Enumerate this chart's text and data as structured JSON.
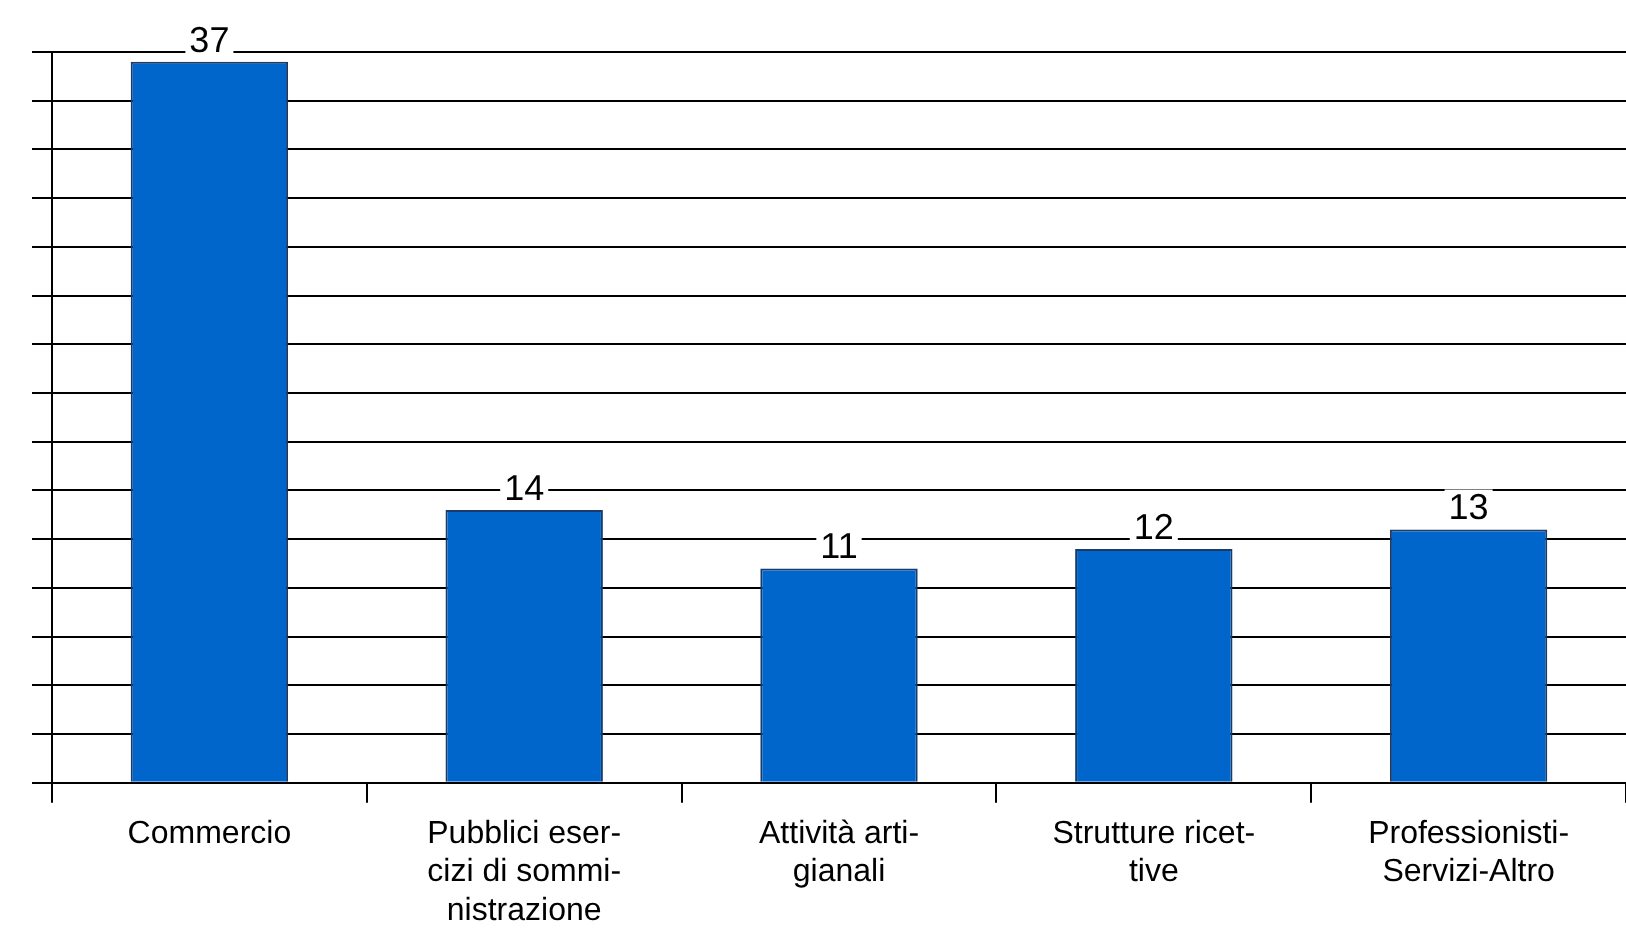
{
  "chart_data": {
    "type": "bar",
    "categories": [
      "Commercio",
      "Pubblici eser-\ncizi di sommi-\nnistrazione",
      "Attività arti-\ngianali",
      "Strutture ricet-\ntive",
      "Professionisti-\nServizi-Altro"
    ],
    "values": [
      37,
      14,
      11,
      12,
      13
    ],
    "color": "#0066cc",
    "ylim": [
      0,
      37.5
    ],
    "yticks": [
      {
        "value": 0,
        "label": null
      },
      {
        "value": 2.5,
        "label": null
      },
      {
        "value": 5,
        "label": null
      },
      {
        "value": 7.5,
        "label": null
      },
      {
        "value": 10,
        "label": null
      },
      {
        "value": 12.5,
        "label": null
      },
      {
        "value": 15,
        "label": null
      },
      {
        "value": 17.5,
        "label": null
      },
      {
        "value": 20,
        "label": null
      },
      {
        "value": 22.5,
        "label": null
      },
      {
        "value": 25,
        "label": null
      },
      {
        "value": 27.5,
        "label": null
      },
      {
        "value": 30,
        "label": null
      },
      {
        "value": 32.5,
        "label": null
      },
      {
        "value": 35,
        "label": null
      },
      {
        "value": 37.5,
        "label": null
      }
    ],
    "grid": "y",
    "tick_labels": "x",
    "data_labels": true,
    "legend": false
  }
}
